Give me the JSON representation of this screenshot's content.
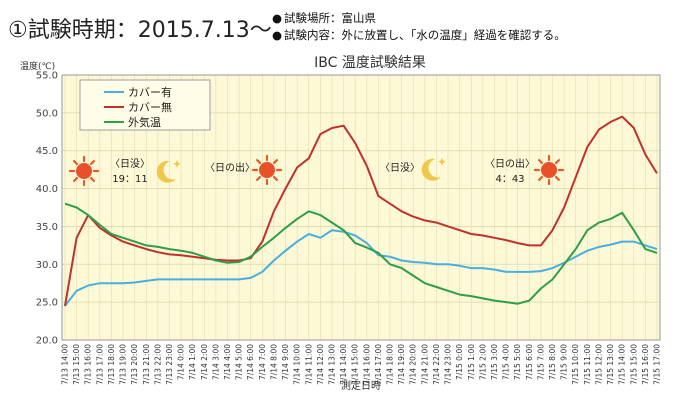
{
  "header": {
    "title": "①試験時期：2015.7.13～",
    "notes": [
      {
        "bullet": "●",
        "text": "試験場所：富山県"
      },
      {
        "bullet": "●",
        "text": "試験内容：外に放置し、「水の温度」経過を確認する。"
      }
    ]
  },
  "chart_data": {
    "type": "line",
    "title": "IBC 温度試験結果",
    "ylabel": "温度(℃)",
    "xlabel": "測定日時",
    "ylim": [
      20.0,
      55.0
    ],
    "yticks": [
      "20.0",
      "25.0",
      "30.0",
      "35.0",
      "40.0",
      "45.0",
      "50.0",
      "55.0"
    ],
    "grid": true,
    "legend_position": "top-left",
    "x": [
      "7/13 14:00",
      "7/13 15:00",
      "7/13 16:00",
      "7/13 17:00",
      "7/13 18:00",
      "7/13 19:00",
      "7/13 20:00",
      "7/13 21:00",
      "7/13 22:00",
      "7/13 23:00",
      "7/14 0:00",
      "7/14 1:00",
      "7/14 2:00",
      "7/14 3:00",
      "7/14 4:00",
      "7/14 5:00",
      "7/14 6:00",
      "7/14 7:00",
      "7/14 8:00",
      "7/14 9:00",
      "7/14 10:00",
      "7/14 11:00",
      "7/14 12:00",
      "7/14 13:00",
      "7/14 14:00",
      "7/14 15:00",
      "7/14 16:00",
      "7/14 17:00",
      "7/14 18:00",
      "7/14 19:00",
      "7/14 20:00",
      "7/14 21:00",
      "7/14 22:00",
      "7/14 23:00",
      "7/15 0:00",
      "7/15 1:00",
      "7/15 2:00",
      "7/15 3:00",
      "7/15 4:00",
      "7/15 5:00",
      "7/15 6:00",
      "7/15 7:00",
      "7/15 8:00",
      "7/15 9:00",
      "7/15 10:00",
      "7/15 11:00",
      "7/15 12:00",
      "7/15 13:00",
      "7/15 14:00",
      "7/15 15:00",
      "7/15 16:00",
      "7/15 17:00"
    ],
    "series": [
      {
        "name": "カバー有",
        "color": "#4aaee0",
        "values": [
          24.5,
          26.5,
          27.2,
          27.5,
          27.5,
          27.5,
          27.6,
          27.8,
          28.0,
          28.0,
          28.0,
          28.0,
          28.0,
          28.0,
          28.0,
          28.0,
          28.2,
          29.0,
          30.5,
          31.8,
          33.0,
          34.0,
          33.5,
          34.5,
          34.3,
          33.8,
          32.8,
          31.2,
          31.0,
          30.5,
          30.3,
          30.2,
          30.0,
          30.0,
          29.8,
          29.5,
          29.5,
          29.3,
          29.0,
          29.0,
          29.0,
          29.1,
          29.5,
          30.2,
          31.0,
          31.8,
          32.3,
          32.6,
          33.0,
          33.0,
          32.5,
          32.0
        ]
      },
      {
        "name": "カバー無",
        "color": "#c0302c",
        "values": [
          24.5,
          33.5,
          36.5,
          34.8,
          33.8,
          33.0,
          32.5,
          32.0,
          31.6,
          31.3,
          31.2,
          31.0,
          30.8,
          30.6,
          30.5,
          30.5,
          30.8,
          33.0,
          37.0,
          40.0,
          42.8,
          44.0,
          47.2,
          48.0,
          48.3,
          46.0,
          43.0,
          39.0,
          38.0,
          37.0,
          36.3,
          35.8,
          35.5,
          35.0,
          34.5,
          34.0,
          33.8,
          33.5,
          33.2,
          32.8,
          32.5,
          32.5,
          34.5,
          37.5,
          41.5,
          45.5,
          47.8,
          48.8,
          49.5,
          48.0,
          44.5,
          42.0
        ]
      },
      {
        "name": "外気温",
        "color": "#2e9e48",
        "values": [
          38.0,
          37.5,
          36.5,
          35.2,
          34.0,
          33.5,
          33.0,
          32.5,
          32.3,
          32.0,
          31.8,
          31.5,
          31.0,
          30.5,
          30.2,
          30.3,
          31.0,
          32.3,
          33.5,
          34.8,
          36.0,
          37.0,
          36.5,
          35.5,
          34.5,
          32.8,
          32.2,
          31.5,
          30.0,
          29.5,
          28.5,
          27.5,
          27.0,
          26.5,
          26.0,
          25.8,
          25.5,
          25.2,
          25.0,
          24.8,
          25.2,
          26.8,
          28.0,
          30.0,
          32.0,
          34.5,
          35.5,
          36.0,
          36.8,
          34.5,
          32.0,
          31.5
        ]
      }
    ],
    "annotations": [
      {
        "id": "sunset-1",
        "icon": "sun-icon",
        "label_lines": [
          "〈日没〉",
          "19：11"
        ],
        "icon2": "moon-icon"
      },
      {
        "id": "sunrise-1",
        "label_lines": [
          "〈日の出〉"
        ],
        "icon": "sun-icon"
      },
      {
        "id": "sunset-2",
        "label_lines": [
          "〈日没〉"
        ],
        "icon": "moon-icon"
      },
      {
        "id": "sunrise-2",
        "label_lines": [
          "〈日の出〉",
          "4：43"
        ],
        "icon": "sun-icon"
      }
    ],
    "colors": {
      "plot_background": "#fdf8d6",
      "grid": "#dedbb8"
    }
  }
}
